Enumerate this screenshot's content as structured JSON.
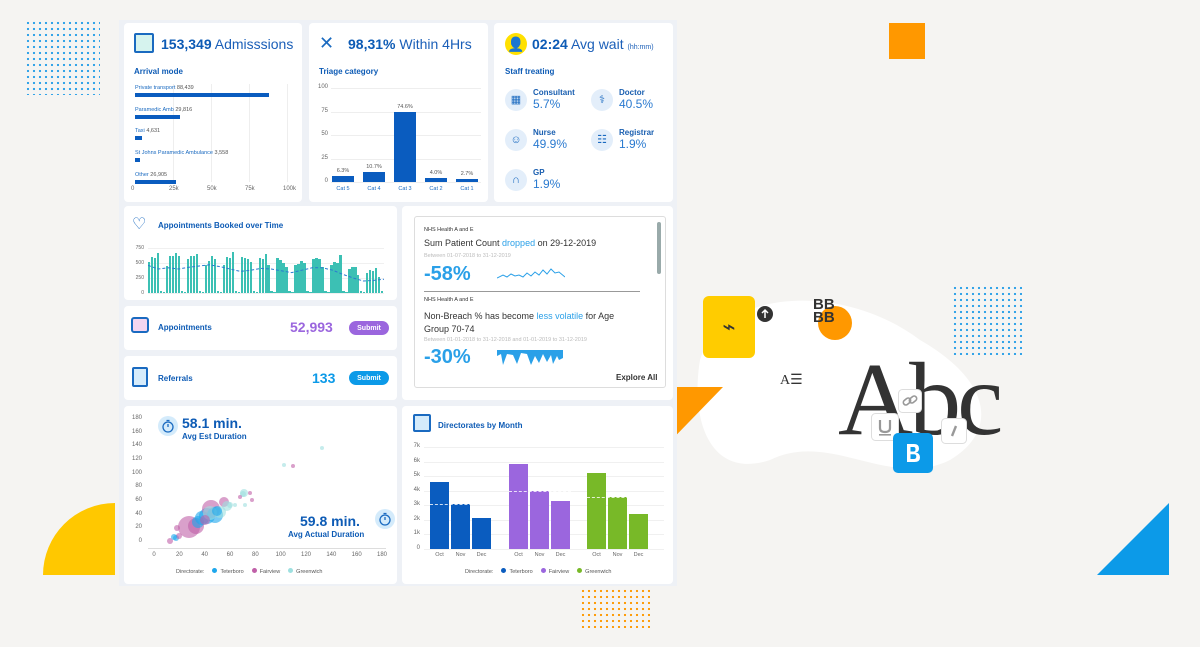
{
  "colors": {
    "accent": "#0d5bb5",
    "teterboro": "#0a5cbf",
    "fairview": "#9b66de",
    "greenwich": "#78b928",
    "teal": "#3cc0b4",
    "orange": "#ff9800"
  },
  "admissions": {
    "value": "153,349",
    "label": "Admisssions",
    "subtitle": "Arrival mode"
  },
  "triage": {
    "value": "98,31%",
    "label": "Within 4Hrs",
    "subtitle": "Triage category"
  },
  "wait": {
    "value": "02:24",
    "label": "Avg wait",
    "unit": "(hh:mm)",
    "subtitle": "Staff treating",
    "staff": [
      {
        "label": "Consultant",
        "value": "5.7%",
        "icon": "calendar-icon"
      },
      {
        "label": "Doctor",
        "value": "40.5%",
        "icon": "doctor-icon"
      },
      {
        "label": "Nurse",
        "value": "49.9%",
        "icon": "nurse-icon"
      },
      {
        "label": "Registrar",
        "value": "1.9%",
        "icon": "clipboard-icon"
      },
      {
        "label": "GP",
        "value": "1.9%",
        "icon": "stethoscope-icon"
      }
    ]
  },
  "appointments_time": {
    "title": "Appointments Booked over Time"
  },
  "appointments": {
    "label": "Appointments",
    "value": "52,993",
    "button": "Submit"
  },
  "referrals": {
    "label": "Referrals",
    "value": "133",
    "button": "Submit"
  },
  "insights": {
    "items": [
      {
        "source": "NHS Health A and E",
        "pre": "Sum Patient Count ",
        "highlight": "dropped",
        "post": " on 29-12-2019",
        "range": "Between 01-07-2018 to 31-12-2019",
        "value": "-58%"
      },
      {
        "source": "NHS Health A and E",
        "pre": "Non-Breach % has become ",
        "highlight": "less volatile",
        "post": " for Age Group 70-74",
        "range": "Between 01-01-2018 to 31-12-2018 and 01-01-2019 to 31-12-2019",
        "value": "-30%"
      }
    ],
    "explore": "Explore All"
  },
  "duration": {
    "est_value": "58.1 min.",
    "est_label": "Avg Est Duration",
    "act_value": "59.8 min.",
    "act_label": "Avg Actual Duration"
  },
  "directorates": {
    "title": "Directorates by Month"
  },
  "chart_data": [
    {
      "type": "bar",
      "orientation": "horizontal",
      "title": "Arrival mode",
      "categories": [
        "Private transport",
        "Paramedic Amb",
        "Taxi",
        "St Johns Paramedic Ambulance",
        "Other"
      ],
      "values": [
        88439,
        29816,
        4631,
        3558,
        26905
      ],
      "value_labels": [
        "88,439",
        "29,816",
        "4,631",
        "3,558",
        "26,905"
      ],
      "xlim": [
        0,
        100000
      ],
      "xticks": [
        "0",
        "25k",
        "50k",
        "75k",
        "100k"
      ]
    },
    {
      "type": "bar",
      "title": "Triage category",
      "categories": [
        "Cat 5",
        "Cat 4",
        "Cat 3",
        "Cat 2",
        "Cat 1"
      ],
      "values": [
        6.3,
        10.7,
        74.6,
        4.0,
        2.7
      ],
      "value_labels": [
        "6.3%",
        "10.7%",
        "74.6%",
        "4.0%",
        "2.7%"
      ],
      "ylim": [
        0,
        100
      ],
      "yticks": [
        "0",
        "25",
        "50",
        "75",
        "100"
      ]
    },
    {
      "type": "bar",
      "title": "Appointments Booked over Time",
      "ylim": [
        0,
        750
      ],
      "yticks": [
        "0",
        "250",
        "500",
        "750"
      ],
      "values": [
        520,
        600,
        580,
        660,
        30,
        20,
        450,
        610,
        620,
        660,
        620,
        30,
        20,
        560,
        620,
        610,
        650,
        30,
        20,
        470,
        540,
        610,
        570,
        30,
        20,
        460,
        600,
        580,
        690,
        30,
        20,
        600,
        580,
        560,
        520,
        30,
        20,
        590,
        560,
        650,
        470,
        30,
        20,
        590,
        550,
        500,
        430,
        30,
        20,
        460,
        480,
        540,
        500,
        30,
        20,
        570,
        580,
        560,
        430,
        30,
        20,
        460,
        520,
        500,
        640,
        30,
        20,
        400,
        430,
        430,
        300,
        30,
        20,
        330,
        390,
        370,
        410,
        260,
        40
      ],
      "trend": [
        460,
        400,
        420,
        400,
        430,
        450,
        470,
        440,
        400,
        360,
        380,
        410,
        400,
        370,
        340,
        380,
        420,
        420,
        380,
        310,
        250,
        200,
        210,
        230
      ]
    },
    {
      "type": "scatter",
      "title": "Duration",
      "xlim": [
        0,
        180
      ],
      "ylim": [
        0,
        180
      ],
      "xticks": [
        "0",
        "20",
        "40",
        "60",
        "80",
        "100",
        "120",
        "140",
        "160",
        "180"
      ],
      "yticks": [
        "0",
        "20",
        "40",
        "60",
        "80",
        "100",
        "120",
        "140",
        "160",
        "180"
      ],
      "legend_title": "Directorate:",
      "legend": [
        "Teterboro",
        "Fairview",
        "Greenwich"
      ],
      "points": [
        [
          17,
          6,
          3,
          0
        ],
        [
          13,
          1,
          3,
          1
        ],
        [
          20,
          9,
          3,
          1
        ],
        [
          18,
          20,
          3,
          1
        ],
        [
          28,
          22,
          11,
          1
        ],
        [
          33,
          24,
          8,
          1
        ],
        [
          38,
          35,
          7,
          0
        ],
        [
          42,
          38,
          8,
          0
        ],
        [
          45,
          48,
          9,
          1
        ],
        [
          48,
          40,
          8,
          0
        ],
        [
          52,
          44,
          6,
          2
        ],
        [
          55,
          58,
          5,
          1
        ],
        [
          58,
          52,
          5,
          2
        ],
        [
          60,
          54,
          3,
          2
        ],
        [
          64,
          54,
          2,
          2
        ],
        [
          70,
          70,
          3,
          2
        ],
        [
          71,
          72,
          4,
          2
        ],
        [
          68,
          66,
          2,
          1
        ],
        [
          72,
          54,
          2,
          2
        ],
        [
          76,
          72,
          2,
          1
        ],
        [
          77,
          61,
          2,
          1
        ],
        [
          103,
          112,
          2,
          2
        ],
        [
          110,
          111,
          2,
          1
        ],
        [
          133,
          138,
          2,
          2
        ],
        [
          35,
          30,
          6,
          0
        ],
        [
          44,
          42,
          7,
          2
        ],
        [
          50,
          46,
          5,
          0
        ],
        [
          40,
          32,
          5,
          1
        ],
        [
          16,
          7,
          3,
          0
        ]
      ]
    },
    {
      "type": "bar",
      "title": "Directorates by Month",
      "categories": [
        "Oct",
        "Nov",
        "Dec"
      ],
      "ylim": [
        0,
        7000
      ],
      "yticks": [
        "0",
        "1k",
        "2k",
        "3k",
        "4k",
        "5k",
        "6k",
        "7k"
      ],
      "legend_title": "Directorate:",
      "series": [
        {
          "name": "Teterboro",
          "values": [
            4600,
            3100,
            2100
          ],
          "avg": 3100
        },
        {
          "name": "Fairview",
          "values": [
            5800,
            4000,
            3300
          ],
          "avg": 4000
        },
        {
          "name": "Greenwich",
          "values": [
            5200,
            3600,
            2400
          ],
          "avg": 3600
        }
      ]
    }
  ]
}
